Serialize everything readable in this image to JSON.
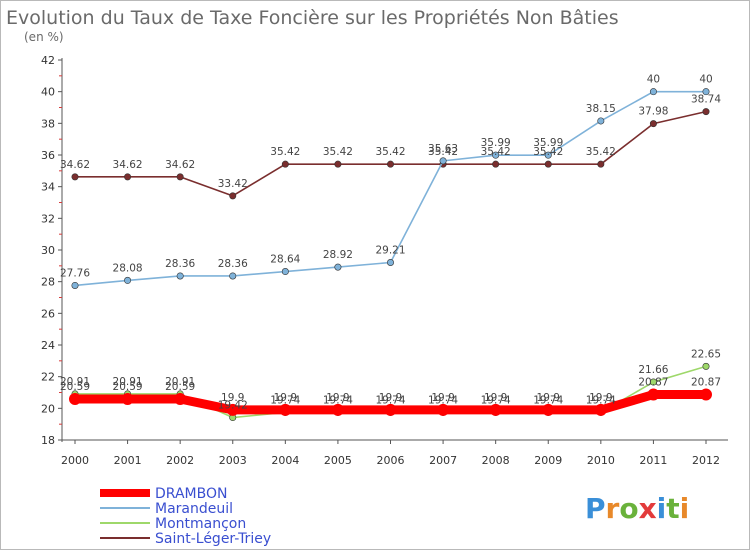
{
  "chart_data": {
    "type": "line",
    "title": "Evolution du Taux de Taxe Foncière sur les Propriétés Non Bâties",
    "subtitle": "(en %)",
    "categories": [
      "2000",
      "2001",
      "2002",
      "2003",
      "2004",
      "2005",
      "2006",
      "2007",
      "2008",
      "2009",
      "2010",
      "2011",
      "2012"
    ],
    "ylim": [
      18,
      42
    ],
    "yticks": [
      18,
      20,
      22,
      24,
      26,
      28,
      30,
      32,
      34,
      36,
      38,
      40,
      42
    ],
    "grid": false,
    "legend_position": "bottom-left",
    "series": [
      {
        "name": "DRAMBON",
        "color": "#ff0000",
        "values": [
          20.59,
          20.59,
          20.59,
          19.9,
          19.9,
          19.9,
          19.9,
          19.9,
          19.9,
          19.9,
          19.9,
          20.87,
          20.87
        ],
        "labels": [
          "20.59",
          "20.59",
          "20.59",
          "19.9",
          "19.9",
          "19.9",
          "19.9",
          "19.9",
          "19.9",
          "19.9",
          "19.9",
          "20.87",
          "20.87"
        ]
      },
      {
        "name": "Marandeuil",
        "color": "#7fb2d9",
        "values": [
          27.76,
          28.08,
          28.36,
          28.36,
          28.64,
          28.92,
          29.21,
          35.63,
          35.99,
          35.99,
          38.15,
          40,
          40
        ],
        "labels": [
          "27.76",
          "28.08",
          "28.36",
          "28.36",
          "28.64",
          "28.92",
          "29.21",
          "35.63",
          "35.99",
          "35.99",
          "38.15",
          "40",
          "40"
        ]
      },
      {
        "name": "Montmançon",
        "color": "#9ed86a",
        "values": [
          20.91,
          20.91,
          20.91,
          19.42,
          19.74,
          19.74,
          19.74,
          19.74,
          19.74,
          19.74,
          19.74,
          21.66,
          22.65
        ],
        "labels": [
          "20.91",
          "20.91",
          "20.91",
          "19.42",
          "19.74",
          "19.74",
          "19.74",
          "19.74",
          "19.74",
          "19.74",
          "19.74",
          "21.66",
          "22.65"
        ]
      },
      {
        "name": "Saint-Léger-Triey",
        "color": "#7a2e2e",
        "values": [
          34.62,
          34.62,
          34.62,
          33.42,
          35.42,
          35.42,
          35.42,
          35.42,
          35.42,
          35.42,
          35.42,
          37.98,
          38.74
        ],
        "labels": [
          "34.62",
          "34.62",
          "34.62",
          "33.42",
          "35.42",
          "35.42",
          "35.42",
          "35.42",
          "35.42",
          "35.42",
          "35.42",
          "37.98",
          "38.74"
        ]
      }
    ]
  },
  "logo": {
    "text": "Proxiti",
    "letters": [
      "P",
      "r",
      "o",
      "x",
      "i",
      "t",
      "i"
    ],
    "colors": [
      "#3a8fd8",
      "#e8892a",
      "#6ab23b",
      "#e33b3b",
      "#3a8fd8",
      "#6ab23b",
      "#e8892a"
    ]
  }
}
